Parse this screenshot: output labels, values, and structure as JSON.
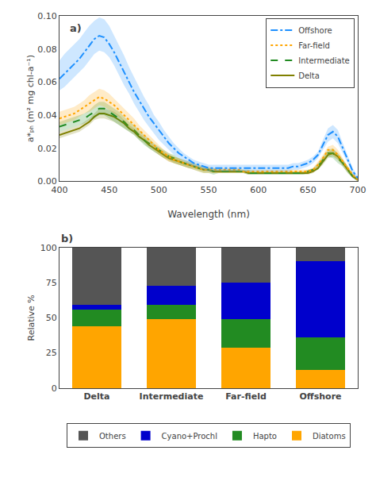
{
  "chart_data": [
    {
      "type": "line",
      "xlabel": "Wavelength (nm)",
      "ylabel": "a*ₚₕ (m² mg chl-a⁻¹)",
      "x": [
        400,
        405,
        410,
        415,
        420,
        425,
        430,
        435,
        440,
        445,
        450,
        455,
        460,
        465,
        470,
        475,
        480,
        485,
        490,
        495,
        500,
        505,
        510,
        515,
        520,
        525,
        530,
        535,
        540,
        545,
        550,
        555,
        560,
        565,
        570,
        575,
        580,
        585,
        590,
        595,
        600,
        605,
        610,
        615,
        620,
        625,
        630,
        635,
        640,
        645,
        650,
        655,
        660,
        665,
        670,
        675,
        680,
        685,
        690,
        695,
        700
      ],
      "series": [
        {
          "name": "Delta",
          "color": "#808000",
          "line_style": "solid",
          "values": [
            0.028,
            0.029,
            0.03,
            0.031,
            0.032,
            0.034,
            0.036,
            0.039,
            0.041,
            0.041,
            0.04,
            0.039,
            0.037,
            0.035,
            0.032,
            0.03,
            0.027,
            0.025,
            0.022,
            0.02,
            0.018,
            0.016,
            0.014,
            0.013,
            0.012,
            0.011,
            0.01,
            0.009,
            0.008,
            0.007,
            0.007,
            0.006,
            0.006,
            0.006,
            0.006,
            0.006,
            0.006,
            0.006,
            0.005,
            0.005,
            0.005,
            0.005,
            0.005,
            0.005,
            0.005,
            0.005,
            0.005,
            0.005,
            0.005,
            0.005,
            0.005,
            0.006,
            0.008,
            0.012,
            0.016,
            0.017,
            0.015,
            0.011,
            0.007,
            0.003,
            0.001
          ],
          "upper": [
            0.03,
            0.031,
            0.032,
            0.033,
            0.034,
            0.036,
            0.038,
            0.041,
            0.044,
            0.044,
            0.043,
            0.042,
            0.04,
            0.037,
            0.034,
            0.032,
            0.029,
            0.027,
            0.024,
            0.022,
            0.02,
            0.018,
            0.016,
            0.015,
            0.014,
            0.012,
            0.011,
            0.01,
            0.009,
            0.008,
            0.008,
            0.007,
            0.007,
            0.007,
            0.007,
            0.007,
            0.007,
            0.006,
            0.006,
            0.006,
            0.006,
            0.006,
            0.006,
            0.006,
            0.006,
            0.006,
            0.006,
            0.006,
            0.006,
            0.006,
            0.006,
            0.007,
            0.01,
            0.014,
            0.018,
            0.019,
            0.017,
            0.013,
            0.009,
            0.004,
            0.002
          ],
          "lower": [
            0.026,
            0.027,
            0.028,
            0.029,
            0.03,
            0.032,
            0.034,
            0.037,
            0.038,
            0.038,
            0.037,
            0.036,
            0.034,
            0.032,
            0.03,
            0.028,
            0.025,
            0.023,
            0.02,
            0.018,
            0.016,
            0.014,
            0.012,
            0.011,
            0.01,
            0.009,
            0.008,
            0.008,
            0.007,
            0.006,
            0.006,
            0.005,
            0.005,
            0.005,
            0.005,
            0.005,
            0.005,
            0.005,
            0.004,
            0.004,
            0.004,
            0.004,
            0.004,
            0.004,
            0.004,
            0.004,
            0.004,
            0.004,
            0.004,
            0.004,
            0.004,
            0.005,
            0.007,
            0.01,
            0.014,
            0.015,
            0.013,
            0.009,
            0.005,
            0.002,
            0.0
          ]
        },
        {
          "name": "Intermediate",
          "color": "#228B22",
          "line_style": "dash",
          "values": [
            0.033,
            0.034,
            0.035,
            0.036,
            0.037,
            0.038,
            0.04,
            0.042,
            0.044,
            0.044,
            0.042,
            0.04,
            0.038,
            0.036,
            0.033,
            0.031,
            0.028,
            0.025,
            0.023,
            0.021,
            0.019,
            0.017,
            0.015,
            0.014,
            0.012,
            0.011,
            0.01,
            0.009,
            0.008,
            0.007,
            0.007,
            0.006,
            0.006,
            0.006,
            0.006,
            0.006,
            0.006,
            0.006,
            0.005,
            0.005,
            0.005,
            0.005,
            0.005,
            0.005,
            0.005,
            0.005,
            0.005,
            0.005,
            0.005,
            0.005,
            0.006,
            0.007,
            0.009,
            0.013,
            0.017,
            0.017,
            0.014,
            0.011,
            0.007,
            0.003,
            0.001
          ],
          "upper": [
            0.036,
            0.037,
            0.038,
            0.039,
            0.04,
            0.041,
            0.043,
            0.046,
            0.048,
            0.048,
            0.046,
            0.044,
            0.042,
            0.039,
            0.036,
            0.034,
            0.031,
            0.028,
            0.026,
            0.023,
            0.021,
            0.019,
            0.017,
            0.016,
            0.014,
            0.013,
            0.012,
            0.011,
            0.01,
            0.009,
            0.008,
            0.008,
            0.007,
            0.007,
            0.007,
            0.007,
            0.007,
            0.007,
            0.007,
            0.006,
            0.006,
            0.006,
            0.006,
            0.006,
            0.006,
            0.006,
            0.006,
            0.006,
            0.006,
            0.006,
            0.007,
            0.008,
            0.011,
            0.015,
            0.019,
            0.02,
            0.017,
            0.013,
            0.009,
            0.004,
            0.002
          ],
          "lower": [
            0.03,
            0.031,
            0.032,
            0.033,
            0.034,
            0.035,
            0.037,
            0.038,
            0.04,
            0.04,
            0.038,
            0.036,
            0.034,
            0.032,
            0.03,
            0.028,
            0.025,
            0.022,
            0.02,
            0.018,
            0.016,
            0.014,
            0.013,
            0.011,
            0.01,
            0.009,
            0.008,
            0.007,
            0.006,
            0.005,
            0.005,
            0.004,
            0.005,
            0.005,
            0.005,
            0.005,
            0.005,
            0.005,
            0.004,
            0.004,
            0.004,
            0.004,
            0.004,
            0.004,
            0.004,
            0.004,
            0.004,
            0.004,
            0.004,
            0.004,
            0.005,
            0.006,
            0.007,
            0.011,
            0.015,
            0.014,
            0.011,
            0.009,
            0.005,
            0.002,
            0.0
          ]
        },
        {
          "name": "Far-field",
          "color": "#FFA500",
          "line_style": "dot",
          "values": [
            0.038,
            0.039,
            0.04,
            0.041,
            0.043,
            0.045,
            0.047,
            0.049,
            0.051,
            0.05,
            0.048,
            0.046,
            0.043,
            0.04,
            0.037,
            0.034,
            0.031,
            0.028,
            0.025,
            0.022,
            0.019,
            0.017,
            0.015,
            0.013,
            0.012,
            0.011,
            0.01,
            0.009,
            0.008,
            0.007,
            0.007,
            0.007,
            0.007,
            0.007,
            0.007,
            0.007,
            0.007,
            0.006,
            0.006,
            0.006,
            0.006,
            0.006,
            0.006,
            0.006,
            0.006,
            0.006,
            0.006,
            0.006,
            0.006,
            0.006,
            0.006,
            0.007,
            0.01,
            0.014,
            0.019,
            0.019,
            0.016,
            0.012,
            0.008,
            0.004,
            0.001
          ],
          "upper": [
            0.042,
            0.043,
            0.044,
            0.045,
            0.047,
            0.049,
            0.052,
            0.054,
            0.056,
            0.055,
            0.053,
            0.05,
            0.047,
            0.044,
            0.041,
            0.038,
            0.034,
            0.031,
            0.028,
            0.025,
            0.022,
            0.019,
            0.017,
            0.015,
            0.014,
            0.013,
            0.012,
            0.011,
            0.01,
            0.009,
            0.009,
            0.008,
            0.008,
            0.008,
            0.008,
            0.008,
            0.008,
            0.007,
            0.007,
            0.007,
            0.007,
            0.007,
            0.007,
            0.007,
            0.007,
            0.007,
            0.007,
            0.007,
            0.007,
            0.007,
            0.007,
            0.008,
            0.012,
            0.016,
            0.021,
            0.022,
            0.019,
            0.014,
            0.009,
            0.005,
            0.002
          ],
          "lower": [
            0.034,
            0.035,
            0.036,
            0.037,
            0.039,
            0.041,
            0.042,
            0.044,
            0.046,
            0.045,
            0.043,
            0.041,
            0.039,
            0.036,
            0.033,
            0.03,
            0.028,
            0.025,
            0.022,
            0.019,
            0.016,
            0.014,
            0.012,
            0.011,
            0.01,
            0.009,
            0.008,
            0.007,
            0.006,
            0.005,
            0.005,
            0.005,
            0.005,
            0.005,
            0.005,
            0.005,
            0.005,
            0.005,
            0.005,
            0.005,
            0.005,
            0.005,
            0.005,
            0.005,
            0.005,
            0.005,
            0.005,
            0.005,
            0.005,
            0.005,
            0.005,
            0.006,
            0.008,
            0.012,
            0.016,
            0.016,
            0.013,
            0.01,
            0.006,
            0.003,
            0.0
          ]
        },
        {
          "name": "Offshore",
          "color": "#1E90FF",
          "line_style": "dashdot",
          "values": [
            0.062,
            0.065,
            0.068,
            0.071,
            0.074,
            0.078,
            0.082,
            0.086,
            0.088,
            0.087,
            0.083,
            0.078,
            0.072,
            0.066,
            0.06,
            0.054,
            0.049,
            0.044,
            0.039,
            0.035,
            0.031,
            0.027,
            0.023,
            0.02,
            0.017,
            0.015,
            0.013,
            0.011,
            0.01,
            0.009,
            0.008,
            0.008,
            0.008,
            0.008,
            0.008,
            0.008,
            0.008,
            0.008,
            0.008,
            0.008,
            0.008,
            0.008,
            0.008,
            0.008,
            0.008,
            0.008,
            0.008,
            0.009,
            0.009,
            0.01,
            0.011,
            0.013,
            0.016,
            0.022,
            0.028,
            0.03,
            0.027,
            0.02,
            0.013,
            0.006,
            0.002
          ],
          "upper": [
            0.073,
            0.077,
            0.08,
            0.083,
            0.086,
            0.09,
            0.094,
            0.097,
            0.099,
            0.098,
            0.094,
            0.088,
            0.082,
            0.076,
            0.069,
            0.063,
            0.057,
            0.051,
            0.046,
            0.04,
            0.036,
            0.031,
            0.027,
            0.023,
            0.02,
            0.017,
            0.015,
            0.013,
            0.012,
            0.011,
            0.01,
            0.01,
            0.01,
            0.01,
            0.01,
            0.01,
            0.01,
            0.01,
            0.01,
            0.01,
            0.01,
            0.01,
            0.01,
            0.01,
            0.01,
            0.01,
            0.01,
            0.011,
            0.011,
            0.012,
            0.013,
            0.015,
            0.018,
            0.025,
            0.032,
            0.034,
            0.031,
            0.023,
            0.015,
            0.008,
            0.003
          ],
          "lower": [
            0.055,
            0.057,
            0.06,
            0.063,
            0.066,
            0.069,
            0.073,
            0.077,
            0.079,
            0.078,
            0.075,
            0.07,
            0.064,
            0.058,
            0.053,
            0.047,
            0.042,
            0.037,
            0.033,
            0.029,
            0.025,
            0.022,
            0.019,
            0.016,
            0.014,
            0.012,
            0.01,
            0.009,
            0.008,
            0.007,
            0.006,
            0.006,
            0.006,
            0.006,
            0.006,
            0.006,
            0.006,
            0.006,
            0.006,
            0.006,
            0.006,
            0.006,
            0.006,
            0.006,
            0.006,
            0.006,
            0.006,
            0.007,
            0.007,
            0.008,
            0.009,
            0.011,
            0.014,
            0.019,
            0.024,
            0.026,
            0.023,
            0.017,
            0.011,
            0.004,
            0.001
          ]
        }
      ],
      "xlim": [
        400,
        700
      ],
      "xticks": [
        400,
        450,
        500,
        550,
        600,
        650,
        700
      ],
      "ylim": [
        0.0,
        0.1
      ],
      "yticks": [
        {
          "value": 0.0,
          "label": "0.00"
        },
        0.02,
        0.04,
        0.06,
        0.08,
        {
          "value": 0.1,
          "label": "0.10"
        }
      ],
      "legend": "upper right",
      "grid": false,
      "annotations": [
        {
          "text": "a)"
        }
      ]
    },
    {
      "type": "bar",
      "stacked": true,
      "ylabel": "Relative %",
      "categories": [
        "Delta",
        "Intermediate",
        "Far-field",
        "Offshore"
      ],
      "series": [
        {
          "name": "Diatoms",
          "color": "#FFA500",
          "values": [
            44,
            49,
            29,
            13
          ]
        },
        {
          "name": "Hapto",
          "color": "#228B22",
          "values": [
            12,
            10,
            20,
            23
          ]
        },
        {
          "name": "Cyano+Prochl",
          "color": "#0000CC",
          "values": [
            3,
            14,
            26,
            54
          ]
        },
        {
          "name": "Others",
          "color": "#555555",
          "values": [
            41,
            27,
            25,
            10
          ]
        }
      ],
      "ylim": [
        0,
        100
      ],
      "yticks": [
        0,
        25,
        50,
        75,
        100
      ],
      "legend": "below",
      "grid": false,
      "annotations": [
        {
          "text": "b)"
        }
      ]
    }
  ]
}
